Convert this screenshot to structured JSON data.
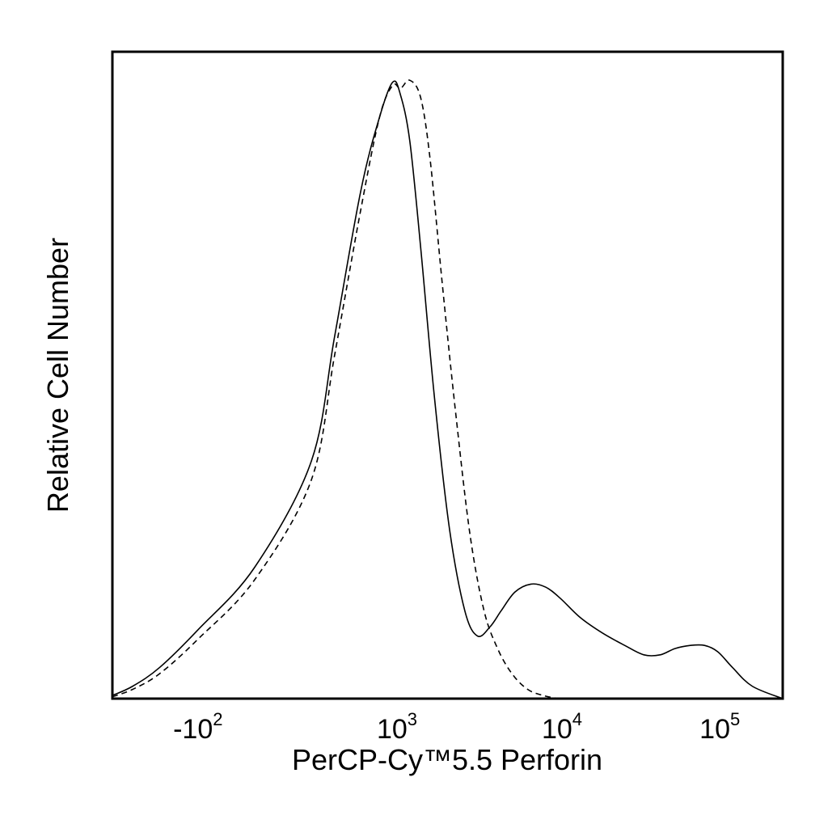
{
  "chart_data": {
    "type": "line",
    "title": "",
    "xlabel": "PerCP-Cy™5.5 Perforin",
    "ylabel": "Relative Cell Number",
    "x_scale": "biexponential",
    "xlim": [
      -1000,
      250000
    ],
    "ylim": [
      0,
      100
    ],
    "grid": false,
    "legend": "none",
    "x_ticks": [
      {
        "value": -100,
        "base": "-10",
        "exp": "2"
      },
      {
        "value": 1000,
        "base": "10",
        "exp": "3"
      },
      {
        "value": 10000,
        "base": "10",
        "exp": "4"
      },
      {
        "value": 100000,
        "base": "10",
        "exp": "5"
      }
    ],
    "series": [
      {
        "style": "solid",
        "color": "#000000",
        "x": [
          -1000,
          -600,
          -300,
          -100,
          0,
          100,
          200,
          400,
          650,
          900,
          1050,
          1200,
          1400,
          1700,
          2100,
          2600,
          3100,
          3700,
          4300,
          5200,
          6500,
          8000,
          9800,
          13000,
          18000,
          25000,
          33000,
          42000,
          52000,
          65000,
          80000,
          97000,
          120000,
          160000,
          250000
        ],
        "y": [
          0.5,
          2,
          5,
          11,
          21,
          38,
          58,
          81,
          93,
          98.5,
          96.5,
          89,
          72,
          48,
          27,
          14,
          10,
          11.5,
          14,
          17,
          18.3,
          17.8,
          16,
          13,
          10.5,
          8.5,
          7,
          7,
          8,
          8.5,
          8.5,
          7.5,
          5,
          2,
          0
        ]
      },
      {
        "style": "dashed",
        "color": "#000000",
        "x": [
          -1000,
          -600,
          -300,
          -100,
          0,
          100,
          200,
          400,
          650,
          900,
          1050,
          1200,
          1400,
          1600,
          1900,
          2300,
          2800,
          3400,
          4100,
          5000,
          6200,
          7700,
          9500
        ],
        "y": [
          0.3,
          1.5,
          4,
          9.5,
          19,
          35,
          55,
          78,
          93,
          98,
          97.5,
          98.8,
          96,
          86,
          66,
          45,
          26,
          14,
          8,
          4,
          1.5,
          0.5,
          0
        ]
      }
    ]
  }
}
